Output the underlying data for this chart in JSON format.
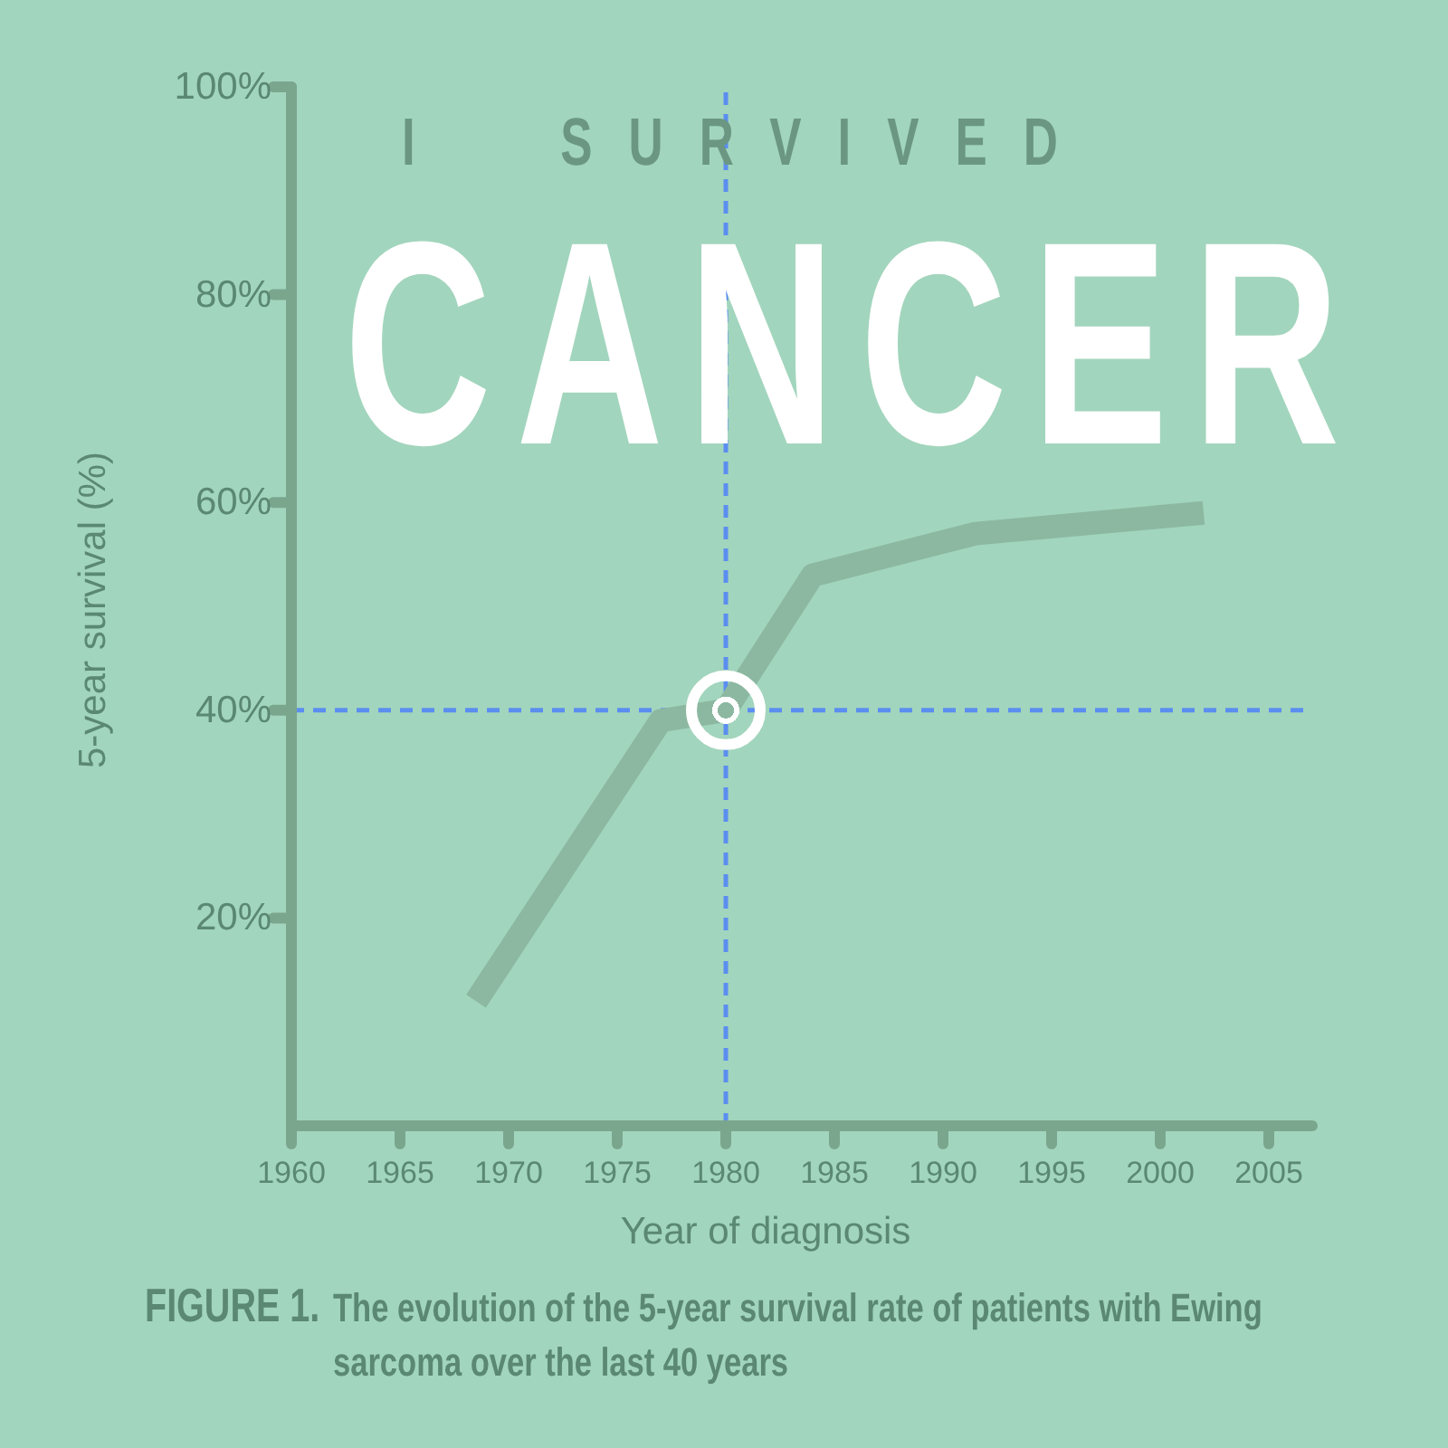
{
  "chart_data": {
    "type": "line",
    "title": "I SURVIVED",
    "subtitle": "CANCER",
    "xlabel": "Year of diagnosis",
    "ylabel": "5-year survival (%)",
    "annotations": [
      "FIGURE 1.",
      "The evolution of the 5-year survival rate of patients with Ewing sarcoma over the last 40 years"
    ],
    "series": [
      {
        "type": "line",
        "color": "#8cb8a1",
        "x": [
          1968.5,
          1977,
          1980,
          1984,
          1991.5,
          2002
        ],
        "values": [
          12,
          39,
          40,
          53,
          57,
          59
        ]
      },
      {
        "type": "scatter",
        "color": "#ffffff",
        "marker": "circle",
        "x": [
          1980
        ],
        "values": [
          40
        ]
      }
    ],
    "xlim": [
      1960,
      2007
    ],
    "xticks": [
      1960,
      1965,
      1970,
      1975,
      1980,
      1985,
      1990,
      1995,
      2000,
      2005
    ],
    "ylim": [
      0,
      100
    ],
    "yticks": [
      {
        "value": 20,
        "label": "20%"
      },
      {
        "value": 40,
        "label": "40%"
      },
      {
        "value": 60,
        "label": "60%"
      },
      {
        "value": 80,
        "label": "80%"
      },
      {
        "value": 100,
        "label": "100%"
      }
    ],
    "ref_lines": [
      {
        "axis": "x",
        "value": 1980,
        "color": "#5b8ef0",
        "line_style": "dashed"
      },
      {
        "axis": "y",
        "value": 40,
        "color": "#5b8ef0",
        "line_style": "dashed"
      }
    ]
  }
}
